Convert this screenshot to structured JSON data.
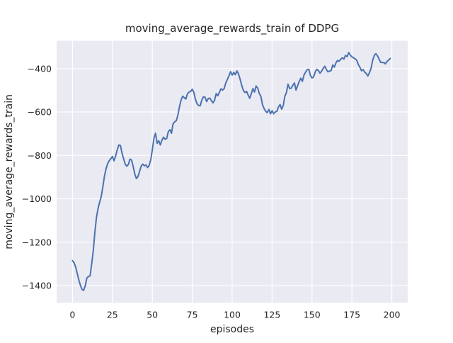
{
  "chart_data": {
    "type": "line",
    "title": "moving_average_rewards_train of DDPG",
    "xlabel": "episodes",
    "ylabel": "moving_average_rewards_train",
    "x_ticks": [
      0,
      25,
      50,
      75,
      100,
      125,
      150,
      175,
      200
    ],
    "y_ticks": [
      -400,
      -600,
      -800,
      -1000,
      -1200,
      -1400
    ],
    "xlim": [
      -9.95,
      209.95
    ],
    "ylim": [
      -1479,
      -272
    ],
    "grid": true,
    "legend": "none",
    "style": {
      "line_color": "#4c72b0",
      "axes_bg": "#eaeaf2",
      "grid_color": "#ffffff",
      "text_color": "#262626",
      "figure_bg": "#ffffff"
    },
    "series": [
      {
        "name": "moving_average_rewards_train",
        "x_start": 0,
        "x_step": 1,
        "y": [
          -1285,
          -1295,
          -1315,
          -1345,
          -1375,
          -1400,
          -1418,
          -1422,
          -1400,
          -1365,
          -1358,
          -1355,
          -1300,
          -1240,
          -1155,
          -1085,
          -1045,
          -1015,
          -990,
          -945,
          -895,
          -862,
          -838,
          -825,
          -815,
          -805,
          -825,
          -803,
          -775,
          -752,
          -754,
          -790,
          -815,
          -840,
          -850,
          -842,
          -817,
          -822,
          -852,
          -885,
          -907,
          -898,
          -874,
          -850,
          -840,
          -848,
          -844,
          -856,
          -846,
          -820,
          -775,
          -720,
          -698,
          -745,
          -732,
          -752,
          -730,
          -716,
          -726,
          -722,
          -690,
          -682,
          -698,
          -655,
          -645,
          -640,
          -615,
          -575,
          -545,
          -527,
          -534,
          -540,
          -516,
          -508,
          -505,
          -495,
          -510,
          -541,
          -562,
          -570,
          -571,
          -545,
          -530,
          -532,
          -552,
          -538,
          -536,
          -548,
          -558,
          -545,
          -515,
          -525,
          -509,
          -493,
          -499,
          -492,
          -466,
          -450,
          -433,
          -414,
          -430,
          -417,
          -428,
          -411,
          -425,
          -450,
          -477,
          -500,
          -510,
          -505,
          -522,
          -537,
          -515,
          -492,
          -508,
          -480,
          -490,
          -515,
          -528,
          -567,
          -584,
          -597,
          -603,
          -588,
          -608,
          -594,
          -608,
          -600,
          -597,
          -577,
          -566,
          -587,
          -570,
          -528,
          -510,
          -472,
          -492,
          -490,
          -477,
          -466,
          -499,
          -479,
          -459,
          -444,
          -459,
          -430,
          -416,
          -405,
          -403,
          -431,
          -443,
          -439,
          -416,
          -403,
          -409,
          -421,
          -412,
          -399,
          -389,
          -404,
          -415,
          -411,
          -409,
          -383,
          -393,
          -374,
          -362,
          -366,
          -357,
          -350,
          -356,
          -339,
          -345,
          -326,
          -338,
          -346,
          -350,
          -355,
          -361,
          -381,
          -393,
          -410,
          -404,
          -416,
          -423,
          -434,
          -419,
          -399,
          -362,
          -340,
          -331,
          -341,
          -356,
          -371,
          -372,
          -372,
          -378,
          -367,
          -361,
          -353
        ]
      }
    ]
  }
}
